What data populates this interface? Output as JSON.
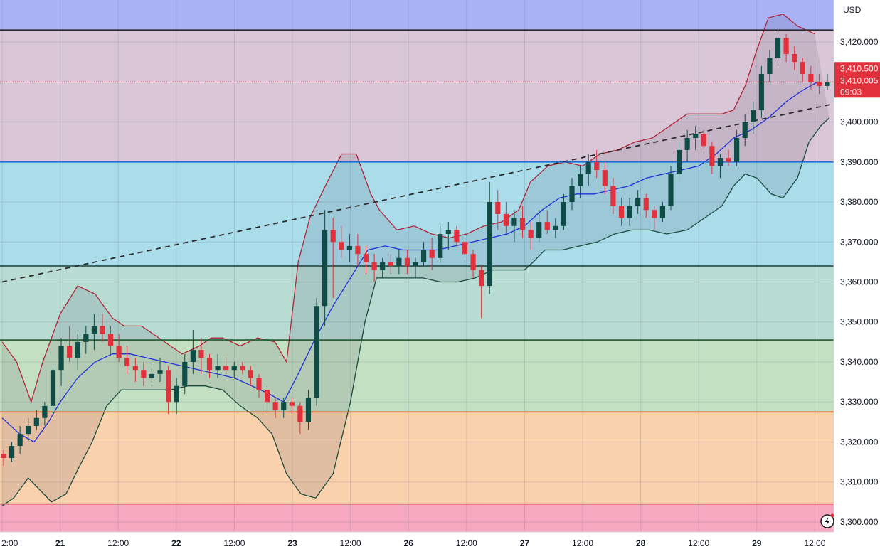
{
  "currency_label": "USD",
  "current_price": {
    "ask_label": "3,410.500",
    "last_label": "3,410.005",
    "countdown": "09:03",
    "value": 3410.005
  },
  "colors": {
    "bull_candle": "#0f4c46",
    "bear_candle": "#e0313d",
    "upper_band": "#b0243a",
    "lower_band": "#1c4a3c",
    "basis": "#2030d8",
    "price_tag": "#e0313d"
  },
  "icons": {
    "alert": "lightning-icon"
  },
  "chart_data": {
    "type": "candlestick",
    "y_axis": {
      "min": 3297.5,
      "max": 3430.5,
      "ticks": [
        3300,
        3310,
        3320,
        3330,
        3340,
        3350,
        3360,
        3370,
        3380,
        3390,
        3400,
        3410,
        3420
      ],
      "tick_labels": [
        "3,300.000",
        "3,310.000",
        "3,320.000",
        "3,330.000",
        "3,340.000",
        "3,350.000",
        "3,360.000",
        "3,370.000",
        "3,380.000",
        "3,390.000",
        "3,400.000",
        "3,410.000",
        "3,420.000"
      ]
    },
    "x_axis": {
      "sessions": 14.47,
      "ticks": [
        {
          "label": "2:00",
          "pos": 0,
          "bold": false
        },
        {
          "label": "21",
          "pos": 1,
          "bold": true
        },
        {
          "label": "12:00",
          "pos": 2,
          "bold": false
        },
        {
          "label": "22",
          "pos": 3,
          "bold": true
        },
        {
          "label": "12:00",
          "pos": 4,
          "bold": false
        },
        {
          "label": "23",
          "pos": 5,
          "bold": true
        },
        {
          "label": "12:00",
          "pos": 6,
          "bold": false
        },
        {
          "label": "26",
          "pos": 7,
          "bold": true
        },
        {
          "label": "12:00",
          "pos": 8,
          "bold": false
        },
        {
          "label": "27",
          "pos": 9,
          "bold": true
        },
        {
          "label": "12:00",
          "pos": 10,
          "bold": false
        },
        {
          "label": "28",
          "pos": 11,
          "bold": true
        },
        {
          "label": "12:00",
          "pos": 12,
          "bold": false
        },
        {
          "label": "29",
          "pos": 13,
          "bold": true
        },
        {
          "label": "12:00",
          "pos": 14,
          "bold": false
        }
      ]
    },
    "price_zones": [
      {
        "from": 3423.0,
        "to": 3440.0,
        "color": "#aab2f6"
      },
      {
        "from": 3390.0,
        "to": 3423.0,
        "color": "#d9c7d7"
      },
      {
        "from": 3364.0,
        "to": 3390.0,
        "color": "#aadcea"
      },
      {
        "from": 3345.5,
        "to": 3364.0,
        "color": "#b8dcd2"
      },
      {
        "from": 3327.5,
        "to": 3345.5,
        "color": "#c4e0c2"
      },
      {
        "from": 3304.5,
        "to": 3327.5,
        "color": "#f9d1ac"
      },
      {
        "from": 3290.0,
        "to": 3304.5,
        "color": "#f5a8bf"
      }
    ],
    "horizontal_levels": [
      {
        "price": 3423.0,
        "color": "#2a2a2a"
      },
      {
        "price": 3390.0,
        "color": "#1f6fd0"
      },
      {
        "price": 3364.0,
        "color": "#1a3d36"
      },
      {
        "price": 3345.5,
        "color": "#1d5a2a"
      },
      {
        "price": 3327.5,
        "color": "#e8541a"
      },
      {
        "price": 3304.5,
        "color": "#d8263c"
      }
    ],
    "trendline": {
      "x1": 0,
      "y1": 3360.0,
      "x2": 14.47,
      "y2": 3405.0
    },
    "bollinger": {
      "upper": [
        [
          0,
          3345
        ],
        [
          0.25,
          3340
        ],
        [
          0.5,
          3330
        ],
        [
          0.7,
          3340
        ],
        [
          1.0,
          3352
        ],
        [
          1.3,
          3359
        ],
        [
          1.6,
          3357
        ],
        [
          1.9,
          3351
        ],
        [
          2.1,
          3349
        ],
        [
          2.4,
          3349
        ],
        [
          2.6,
          3347
        ],
        [
          2.9,
          3344
        ],
        [
          3.1,
          3342
        ],
        [
          3.4,
          3344
        ],
        [
          3.6,
          3346
        ],
        [
          3.8,
          3346
        ],
        [
          4.1,
          3344
        ],
        [
          4.4,
          3346
        ],
        [
          4.7,
          3345
        ],
        [
          4.9,
          3340
        ],
        [
          5.1,
          3365
        ],
        [
          5.3,
          3376
        ],
        [
          5.6,
          3385
        ],
        [
          5.85,
          3392
        ],
        [
          6.1,
          3392
        ],
        [
          6.35,
          3382
        ],
        [
          6.5,
          3378
        ],
        [
          6.8,
          3373
        ],
        [
          7.1,
          3374
        ],
        [
          7.4,
          3372
        ],
        [
          7.7,
          3371
        ],
        [
          8.0,
          3372
        ],
        [
          8.3,
          3374
        ],
        [
          8.6,
          3375
        ],
        [
          8.9,
          3378
        ],
        [
          9.1,
          3385
        ],
        [
          9.4,
          3389
        ],
        [
          9.7,
          3390
        ],
        [
          10.0,
          3389
        ],
        [
          10.3,
          3392
        ],
        [
          10.6,
          3393
        ],
        [
          10.9,
          3395
        ],
        [
          11.2,
          3396
        ],
        [
          11.5,
          3399
        ],
        [
          11.8,
          3402
        ],
        [
          12.1,
          3402
        ],
        [
          12.4,
          3402
        ],
        [
          12.6,
          3403
        ],
        [
          12.8,
          3409
        ],
        [
          13.0,
          3418
        ],
        [
          13.2,
          3426
        ],
        [
          13.45,
          3427
        ],
        [
          13.7,
          3424
        ],
        [
          14.0,
          3422
        ]
      ],
      "basis": [
        [
          0,
          3326
        ],
        [
          0.3,
          3322
        ],
        [
          0.55,
          3320
        ],
        [
          0.8,
          3325
        ],
        [
          1.0,
          3330
        ],
        [
          1.3,
          3336
        ],
        [
          1.6,
          3340
        ],
        [
          1.9,
          3342
        ],
        [
          2.2,
          3342
        ],
        [
          2.5,
          3341
        ],
        [
          2.8,
          3340
        ],
        [
          3.1,
          3339
        ],
        [
          3.4,
          3338
        ],
        [
          3.7,
          3337
        ],
        [
          4.0,
          3336
        ],
        [
          4.3,
          3334
        ],
        [
          4.6,
          3332
        ],
        [
          4.85,
          3330
        ],
        [
          5.1,
          3337
        ],
        [
          5.4,
          3346
        ],
        [
          5.7,
          3354
        ],
        [
          6.0,
          3361
        ],
        [
          6.3,
          3368
        ],
        [
          6.6,
          3369
        ],
        [
          6.9,
          3368
        ],
        [
          7.2,
          3368
        ],
        [
          7.5,
          3368
        ],
        [
          7.8,
          3369
        ],
        [
          8.1,
          3370
        ],
        [
          8.4,
          3371
        ],
        [
          8.7,
          3372
        ],
        [
          9.0,
          3374
        ],
        [
          9.3,
          3378
        ],
        [
          9.6,
          3381
        ],
        [
          9.9,
          3382
        ],
        [
          10.2,
          3382
        ],
        [
          10.5,
          3383
        ],
        [
          10.8,
          3384
        ],
        [
          11.1,
          3386
        ],
        [
          11.4,
          3387
        ],
        [
          11.7,
          3388
        ],
        [
          12.0,
          3389
        ],
        [
          12.3,
          3392
        ],
        [
          12.6,
          3396
        ],
        [
          12.9,
          3398
        ],
        [
          13.2,
          3401
        ],
        [
          13.5,
          3405
        ],
        [
          13.8,
          3408
        ],
        [
          14.05,
          3410
        ]
      ],
      "lower": [
        [
          0,
          3304
        ],
        [
          0.2,
          3306
        ],
        [
          0.45,
          3311
        ],
        [
          0.65,
          3308
        ],
        [
          0.85,
          3305
        ],
        [
          1.1,
          3307
        ],
        [
          1.3,
          3313
        ],
        [
          1.55,
          3320
        ],
        [
          1.8,
          3329
        ],
        [
          2.05,
          3333
        ],
        [
          2.3,
          3333
        ],
        [
          2.6,
          3333
        ],
        [
          2.9,
          3333
        ],
        [
          3.2,
          3334
        ],
        [
          3.5,
          3334
        ],
        [
          3.8,
          3333
        ],
        [
          4.1,
          3329
        ],
        [
          4.4,
          3326
        ],
        [
          4.65,
          3322
        ],
        [
          4.9,
          3312
        ],
        [
          5.15,
          3307
        ],
        [
          5.4,
          3306
        ],
        [
          5.7,
          3312
        ],
        [
          6.0,
          3330
        ],
        [
          6.25,
          3350
        ],
        [
          6.45,
          3361
        ],
        [
          6.65,
          3361
        ],
        [
          6.95,
          3361
        ],
        [
          7.25,
          3361
        ],
        [
          7.55,
          3360
        ],
        [
          7.85,
          3360
        ],
        [
          8.15,
          3361
        ],
        [
          8.45,
          3363
        ],
        [
          8.75,
          3363
        ],
        [
          9.0,
          3363
        ],
        [
          9.15,
          3365
        ],
        [
          9.35,
          3368
        ],
        [
          9.65,
          3368
        ],
        [
          9.95,
          3369
        ],
        [
          10.25,
          3370
        ],
        [
          10.55,
          3372
        ],
        [
          10.85,
          3373
        ],
        [
          11.15,
          3373
        ],
        [
          11.45,
          3372
        ],
        [
          11.8,
          3373
        ],
        [
          12.1,
          3376
        ],
        [
          12.4,
          3379
        ],
        [
          12.6,
          3384
        ],
        [
          12.8,
          3387
        ],
        [
          13.0,
          3386
        ],
        [
          13.25,
          3382
        ],
        [
          13.45,
          3381
        ],
        [
          13.7,
          3386
        ],
        [
          13.9,
          3395
        ],
        [
          14.1,
          3399
        ],
        [
          14.25,
          3401
        ]
      ]
    },
    "candles": [
      [
        3317,
        3318,
        3314,
        3316
      ],
      [
        3316,
        3320,
        3315,
        3319
      ],
      [
        3319,
        3324,
        3317,
        3322
      ],
      [
        3322,
        3326,
        3320,
        3324
      ],
      [
        3324,
        3328,
        3323,
        3326
      ],
      [
        3326,
        3330,
        3324,
        3329
      ],
      [
        3329,
        3339,
        3327,
        3338
      ],
      [
        3338,
        3346,
        3334,
        3344
      ],
      [
        3344,
        3349,
        3340,
        3341
      ],
      [
        3341,
        3347,
        3338,
        3345
      ],
      [
        3345,
        3349,
        3342,
        3347
      ],
      [
        3347,
        3352,
        3343,
        3349
      ],
      [
        3349,
        3352,
        3345,
        3347
      ],
      [
        3347,
        3349,
        3342,
        3344
      ],
      [
        3344,
        3347,
        3340,
        3341
      ],
      [
        3341,
        3344,
        3337,
        3339
      ],
      [
        3339,
        3341,
        3335,
        3338
      ],
      [
        3338,
        3340,
        3334,
        3336
      ],
      [
        3336,
        3339,
        3334,
        3337
      ],
      [
        3337,
        3341,
        3335,
        3338
      ],
      [
        3338,
        3339,
        3327,
        3330
      ],
      [
        3330,
        3336,
        3327,
        3334
      ],
      [
        3334,
        3342,
        3332,
        3340
      ],
      [
        3340,
        3348,
        3337,
        3343
      ],
      [
        3343,
        3346,
        3337,
        3341
      ],
      [
        3341,
        3342,
        3336,
        3338
      ],
      [
        3338,
        3342,
        3336,
        3339
      ],
      [
        3339,
        3341,
        3337,
        3338
      ],
      [
        3338,
        3340,
        3336,
        3339
      ],
      [
        3339,
        3340,
        3337,
        3338
      ],
      [
        3338,
        3339,
        3334,
        3336
      ],
      [
        3336,
        3337,
        3331,
        3333
      ],
      [
        3333,
        3334,
        3327,
        3330
      ],
      [
        3330,
        3331,
        3326,
        3328
      ],
      [
        3328,
        3331,
        3326,
        3330
      ],
      [
        3330,
        3331,
        3327,
        3329
      ],
      [
        3329,
        3330,
        3322,
        3325
      ],
      [
        3325,
        3333,
        3323,
        3331
      ],
      [
        3331,
        3356,
        3329,
        3354
      ],
      [
        3354,
        3378,
        3349,
        3373
      ],
      [
        3373,
        3376,
        3356,
        3370
      ],
      [
        3370,
        3374,
        3366,
        3368
      ],
      [
        3368,
        3372,
        3365,
        3369
      ],
      [
        3369,
        3372,
        3364,
        3367
      ],
      [
        3367,
        3369,
        3362,
        3365
      ],
      [
        3365,
        3367,
        3360,
        3363
      ],
      [
        3363,
        3366,
        3361,
        3365
      ],
      [
        3365,
        3367,
        3362,
        3364
      ],
      [
        3364,
        3368,
        3362,
        3366
      ],
      [
        3366,
        3368,
        3362,
        3364
      ],
      [
        3364,
        3366,
        3361,
        3365
      ],
      [
        3365,
        3370,
        3364,
        3368
      ],
      [
        3368,
        3371,
        3363,
        3366
      ],
      [
        3366,
        3374,
        3365,
        3372
      ],
      [
        3372,
        3375,
        3368,
        3373
      ],
      [
        3373,
        3374,
        3369,
        3370
      ],
      [
        3370,
        3371,
        3366,
        3367
      ],
      [
        3367,
        3368,
        3361,
        3363
      ],
      [
        3363,
        3364,
        3351,
        3359
      ],
      [
        3359,
        3385,
        3357,
        3380
      ],
      [
        3380,
        3383,
        3373,
        3377
      ],
      [
        3377,
        3380,
        3372,
        3374
      ],
      [
        3374,
        3378,
        3370,
        3376
      ],
      [
        3376,
        3379,
        3371,
        3373
      ],
      [
        3373,
        3375,
        3368,
        3371
      ],
      [
        3371,
        3378,
        3370,
        3375
      ],
      [
        3375,
        3378,
        3372,
        3373
      ],
      [
        3373,
        3376,
        3371,
        3374
      ],
      [
        3374,
        3382,
        3373,
        3380
      ],
      [
        3380,
        3386,
        3378,
        3384
      ],
      [
        3384,
        3389,
        3381,
        3387
      ],
      [
        3387,
        3392,
        3384,
        3390
      ],
      [
        3390,
        3393,
        3386,
        3388
      ],
      [
        3388,
        3390,
        3382,
        3384
      ],
      [
        3384,
        3386,
        3377,
        3379
      ],
      [
        3379,
        3381,
        3374,
        3376
      ],
      [
        3376,
        3381,
        3374,
        3379
      ],
      [
        3379,
        3383,
        3377,
        3381
      ],
      [
        3381,
        3382,
        3376,
        3378
      ],
      [
        3378,
        3379,
        3373,
        3376
      ],
      [
        3376,
        3380,
        3375,
        3379
      ],
      [
        3379,
        3389,
        3378,
        3387
      ],
      [
        3387,
        3395,
        3385,
        3393
      ],
      [
        3393,
        3398,
        3390,
        3396
      ],
      [
        3396,
        3399,
        3393,
        3397
      ],
      [
        3397,
        3398,
        3393,
        3394
      ],
      [
        3394,
        3395,
        3387,
        3389
      ],
      [
        3389,
        3392,
        3386,
        3391
      ],
      [
        3391,
        3393,
        3389,
        3390
      ],
      [
        3390,
        3398,
        3389,
        3396
      ],
      [
        3396,
        3402,
        3394,
        3400
      ],
      [
        3400,
        3405,
        3397,
        3403
      ],
      [
        3403,
        3414,
        3401,
        3412
      ],
      [
        3412,
        3418,
        3410,
        3416
      ],
      [
        3416,
        3423,
        3414,
        3421
      ],
      [
        3421,
        3422,
        3415,
        3417
      ],
      [
        3417,
        3419,
        3413,
        3415
      ],
      [
        3415,
        3416,
        3410,
        3412
      ],
      [
        3412,
        3414,
        3408,
        3410
      ],
      [
        3410,
        3412,
        3407,
        3409
      ],
      [
        3409,
        3412,
        3408,
        3410
      ]
    ]
  }
}
